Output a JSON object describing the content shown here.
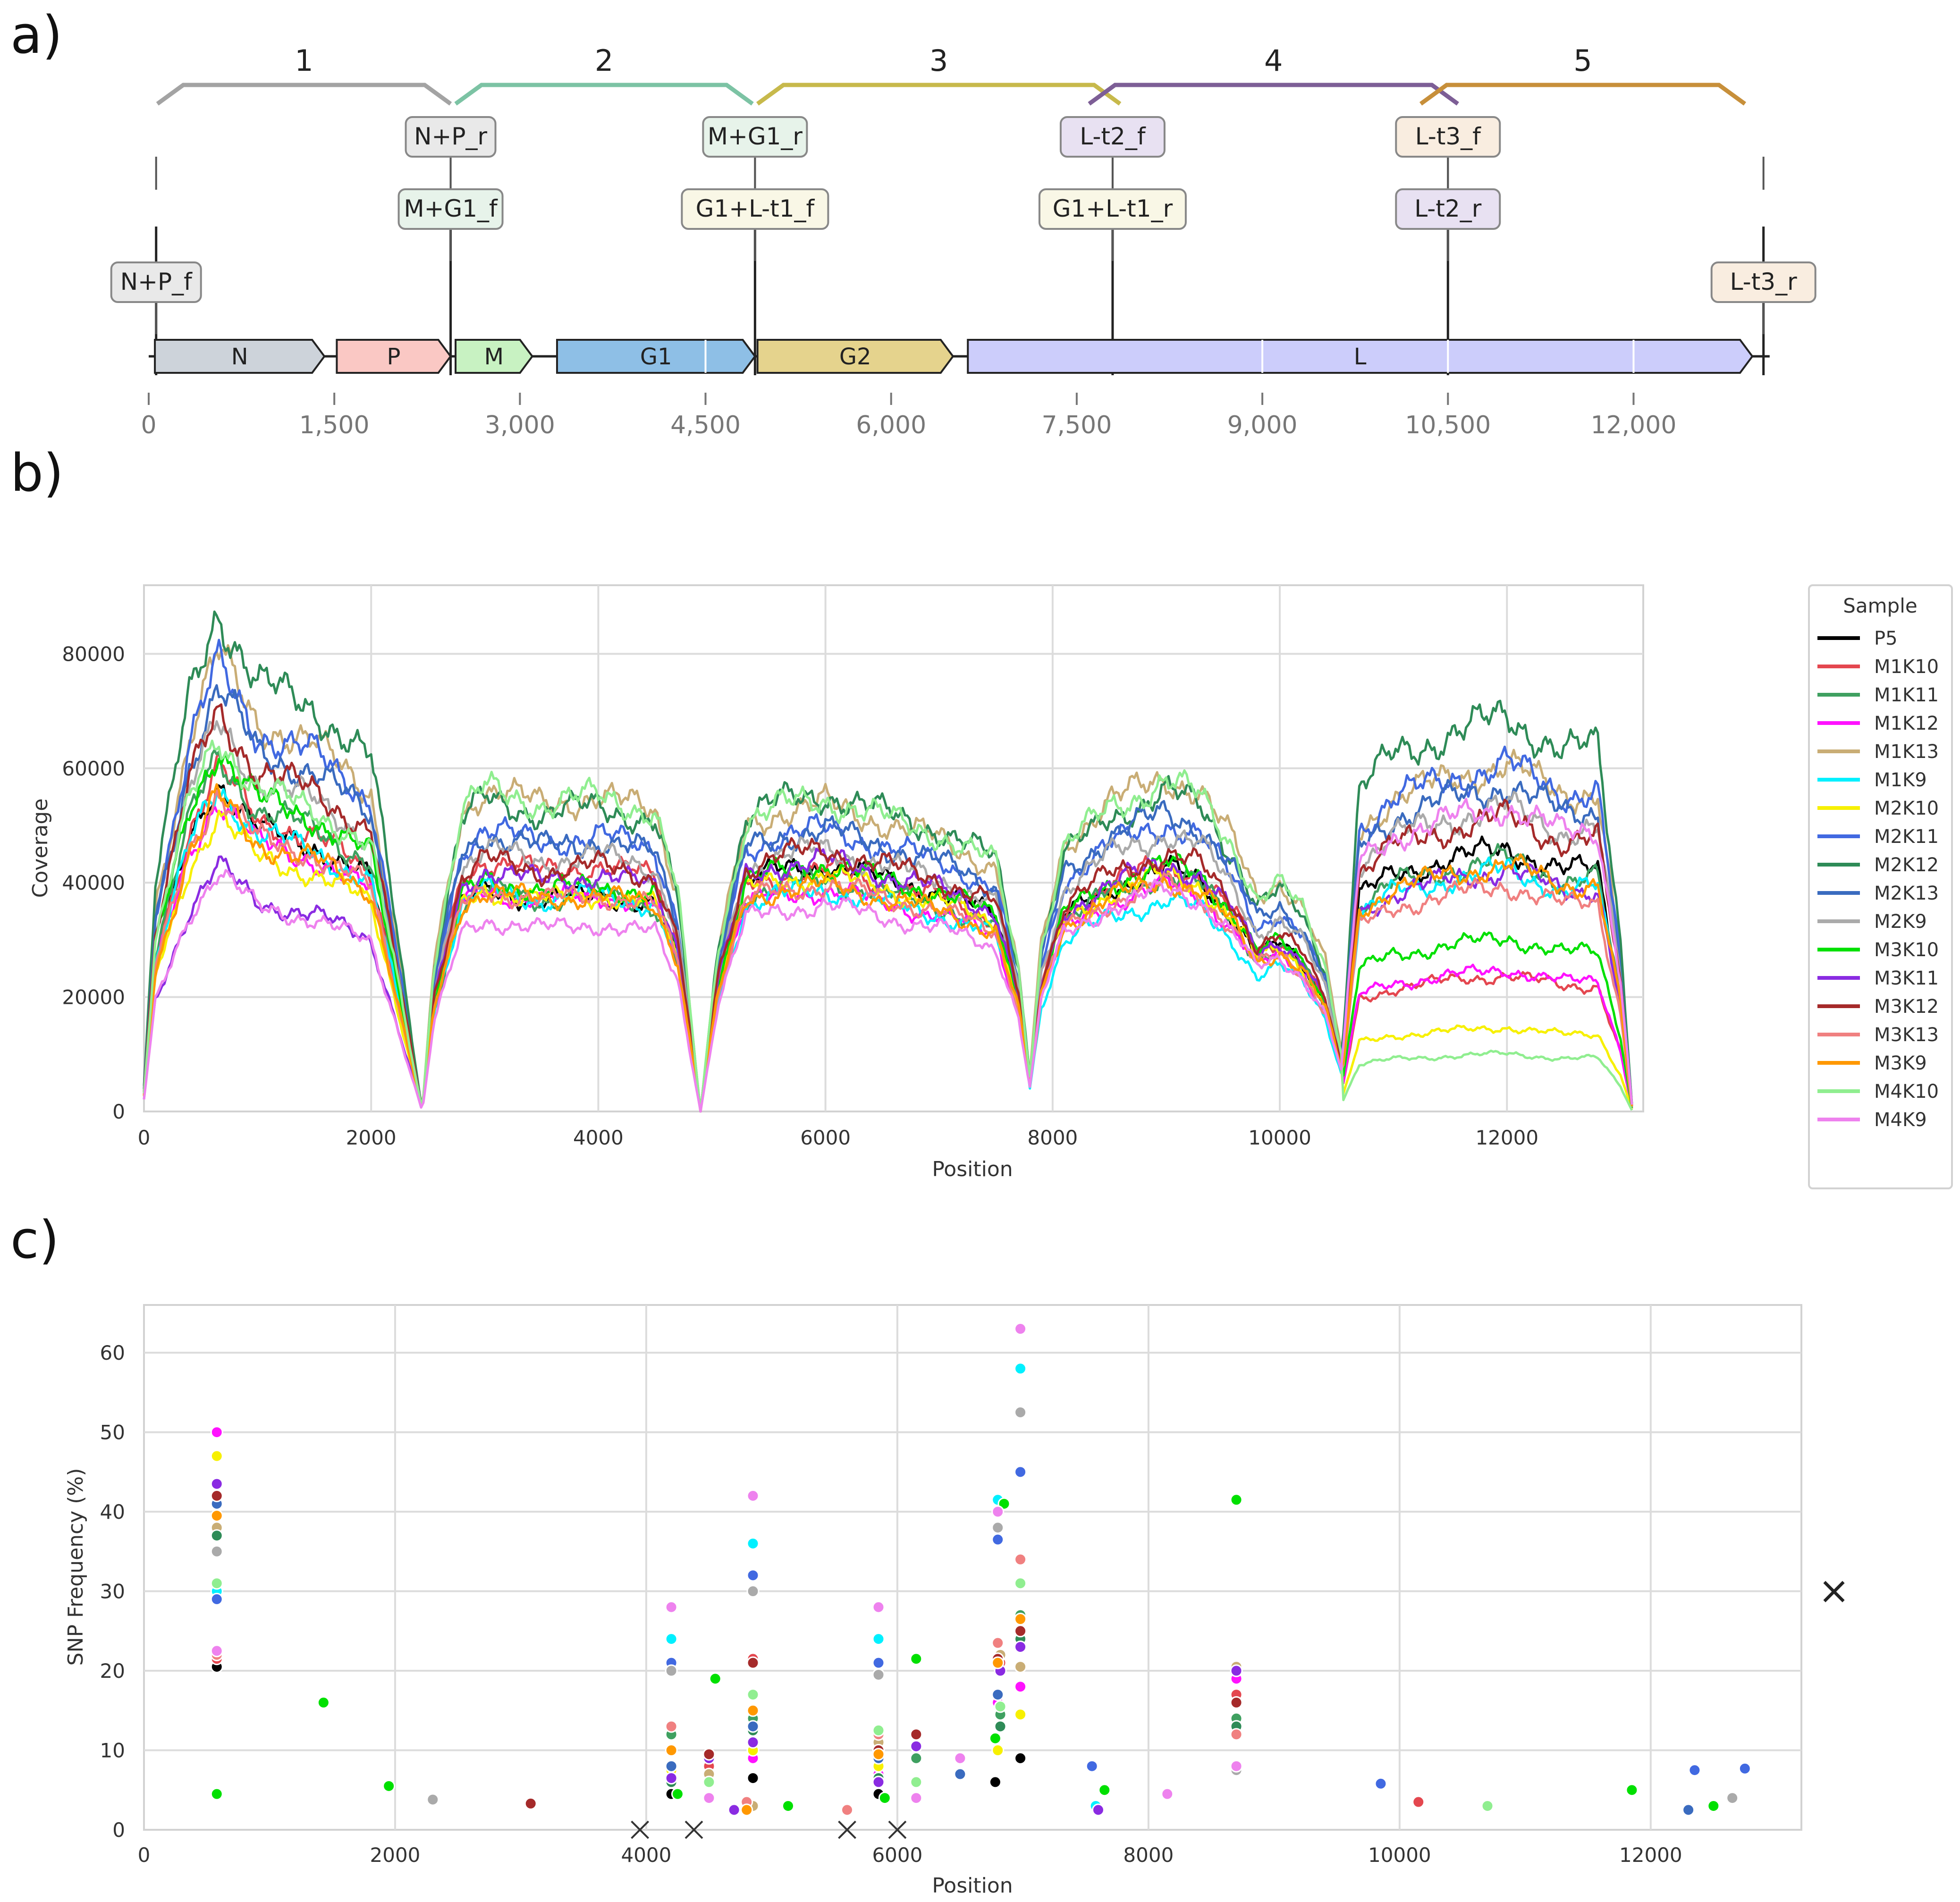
{
  "panel_labels": {
    "a": "a)",
    "b": "b)",
    "c": "c)"
  },
  "colors": {
    "amplicon_1": "#a3a3a3",
    "amplicon_2": "#7cc3a4",
    "amplicon_3": "#c7b94b",
    "amplicon_4": "#7d5e96",
    "amplicon_5": "#c78f3a"
  },
  "chart_data": [
    {
      "panel": "a",
      "type": "genome-map",
      "axis": {
        "range": [
          0,
          13200
        ],
        "ticks": [
          0,
          1500,
          3000,
          4500,
          6000,
          7500,
          9000,
          10500,
          12000
        ],
        "tick_labels": [
          "0",
          "1,500",
          "3,000",
          "4,500",
          "6,000",
          "7,500",
          "9,000",
          "10,500",
          "12,000"
        ]
      },
      "amplicons": [
        {
          "label": "1",
          "start": 70,
          "end": 2440,
          "color": "#a3a3a3"
        },
        {
          "label": "2",
          "start": 2480,
          "end": 4880,
          "color": "#7cc3a4"
        },
        {
          "label": "3",
          "start": 4920,
          "end": 7850,
          "color": "#c7b94b"
        },
        {
          "label": "4",
          "start": 7600,
          "end": 10580,
          "color": "#7d5e96"
        },
        {
          "label": "5",
          "start": 10280,
          "end": 12900,
          "color": "#c78f3a"
        }
      ],
      "genes": [
        {
          "label": "N",
          "start": 50,
          "end": 1420,
          "color": "#cdd3da"
        },
        {
          "label": "P",
          "start": 1520,
          "end": 2440,
          "color": "#fac8c4"
        },
        {
          "label": "M",
          "start": 2480,
          "end": 3100,
          "color": "#c8f2c2"
        },
        {
          "label": "G1",
          "start": 3300,
          "end": 4900,
          "color": "#8ebfe6"
        },
        {
          "label": "G2",
          "start": 4920,
          "end": 6500,
          "color": "#e5d38d"
        },
        {
          "label": "L",
          "start": 6620,
          "end": 12960,
          "color": "#cccdfb"
        }
      ],
      "primers": [
        {
          "label": "N+P_f",
          "pos": 60,
          "tier": 1,
          "color": "#e9e9e9"
        },
        {
          "label": "N+P_r",
          "pos": 2440,
          "tier": 3,
          "color": "#e9e9e9"
        },
        {
          "label": "M+G1_f",
          "pos": 2440,
          "tier": 2,
          "color": "#e7f3ea"
        },
        {
          "label": "M+G1_r",
          "pos": 4900,
          "tier": 3,
          "color": "#e7f3ea"
        },
        {
          "label": "G1+L-t1_f",
          "pos": 4900,
          "tier": 2,
          "color": "#f9f7e6"
        },
        {
          "label": "L-t2_f",
          "pos": 7790,
          "tier": 3,
          "color": "#e8e1f2"
        },
        {
          "label": "G1+L-t1_r",
          "pos": 7790,
          "tier": 2,
          "color": "#f9f7e6"
        },
        {
          "label": "L-t3_f",
          "pos": 10500,
          "tier": 3,
          "color": "#f9ede0"
        },
        {
          "label": "L-t2_r",
          "pos": 10500,
          "tier": 2,
          "color": "#e8e1f2"
        },
        {
          "label": "L-t3_r",
          "pos": 13050,
          "tier": 1,
          "color": "#f9ede0"
        }
      ]
    },
    {
      "panel": "b",
      "type": "line",
      "title": "",
      "xlabel": "Position",
      "ylabel": "Coverage",
      "xlim": [
        0,
        13200
      ],
      "ylim": [
        0,
        92000
      ],
      "xticks": [
        0,
        2000,
        4000,
        6000,
        8000,
        10000,
        12000
      ],
      "xtick_labels": [
        "0",
        "2000",
        "4000",
        "6000",
        "8000",
        "10000",
        "12000"
      ],
      "yticks": [
        0,
        20000,
        40000,
        60000,
        80000
      ],
      "ytick_labels": [
        "0",
        "20000",
        "40000",
        "60000",
        "80000"
      ],
      "legend_title": "Sample",
      "legend_position": "right",
      "base_shape": {
        "x": [
          0,
          100,
          400,
          650,
          1000,
          1500,
          2000,
          2200,
          2450,
          2550,
          2800,
          3000,
          3500,
          4000,
          4500,
          4700,
          4900,
          5050,
          5300,
          5600,
          6000,
          6500,
          7000,
          7500,
          7700,
          7800,
          7900,
          8100,
          8500,
          9000,
          9300,
          9600,
          9800,
          10000,
          10200,
          10400,
          10550,
          10700,
          11000,
          11500,
          12000,
          12500,
          12800,
          13000,
          13100
        ],
        "y": [
          0.05,
          0.45,
          0.82,
          1.0,
          0.85,
          0.8,
          0.7,
          0.4,
          0.0,
          0.4,
          0.82,
          0.88,
          0.84,
          0.86,
          0.82,
          0.6,
          0.0,
          0.45,
          0.82,
          0.86,
          0.88,
          0.83,
          0.78,
          0.7,
          0.4,
          0.1,
          0.45,
          0.72,
          0.83,
          0.9,
          0.86,
          0.72,
          0.58,
          0.62,
          0.55,
          0.4,
          0.15,
          0.75,
          0.83,
          0.88,
          0.92,
          0.84,
          0.85,
          0.4,
          0.02
        ]
      },
      "series": [
        {
          "name": "P5",
          "color": "#000000",
          "peaks": [
            58000,
            44000,
            49000,
            47000,
            50000
          ]
        },
        {
          "name": "M1K10",
          "color": "#e4474f",
          "peaks": [
            60000,
            50000,
            48000,
            48000,
            26000
          ]
        },
        {
          "name": "M1K11",
          "color": "#3fa060",
          "peaks": [
            62000,
            44000,
            46000,
            46000,
            48000
          ]
        },
        {
          "name": "M1K12",
          "color": "#ff12ff",
          "peaks": [
            55000,
            44000,
            44000,
            44000,
            27000
          ]
        },
        {
          "name": "M1K13",
          "color": "#c9ad75",
          "peaks": [
            80000,
            64000,
            61000,
            65000,
            66000
          ]
        },
        {
          "name": "M1K9",
          "color": "#00f0ff",
          "peaks": [
            57000,
            44000,
            44000,
            41000,
            46000
          ]
        },
        {
          "name": "M2K10",
          "color": "#f7f000",
          "peaks": [
            52000,
            44000,
            47000,
            46000,
            16000
          ]
        },
        {
          "name": "M2K11",
          "color": "#4169e1",
          "peaks": [
            78000,
            56000,
            56000,
            56000,
            66000
          ]
        },
        {
          "name": "M2K12",
          "color": "#2e8b57",
          "peaks": [
            88000,
            62000,
            63000,
            62000,
            75000
          ]
        },
        {
          "name": "M2K13",
          "color": "#3a6bbf",
          "peaks": [
            74000,
            55000,
            56000,
            58000,
            62000
          ]
        },
        {
          "name": "M2K9",
          "color": "#aaaaaa",
          "peaks": [
            68000,
            52000,
            52000,
            54000,
            58000
          ]
        },
        {
          "name": "M3K10",
          "color": "#00e000",
          "peaks": [
            64000,
            46000,
            49000,
            48000,
            33000
          ]
        },
        {
          "name": "M3K11",
          "color": "#8a2be2",
          "peaks": [
            43000,
            48000,
            50000,
            48000,
            46000
          ]
        },
        {
          "name": "M3K12",
          "color": "#a52a2a",
          "peaks": [
            70000,
            50000,
            52000,
            50000,
            56000
          ]
        },
        {
          "name": "M3K13",
          "color": "#f08080",
          "peaks": [
            56000,
            44000,
            45000,
            44000,
            43000
          ]
        },
        {
          "name": "M3K9",
          "color": "#ff9800",
          "peaks": [
            55000,
            44000,
            45000,
            45000,
            47000
          ]
        },
        {
          "name": "M4K10",
          "color": "#90ee90",
          "peaks": [
            66000,
            64000,
            62000,
            64000,
            11000
          ]
        },
        {
          "name": "M4K9",
          "color": "#ee82ee",
          "peaks": [
            42000,
            38000,
            41000,
            43000,
            58000
          ]
        }
      ]
    },
    {
      "panel": "c",
      "type": "scatter",
      "title": "",
      "xlabel": "Position",
      "ylabel": "SNP Frequency (%)",
      "xlim": [
        0,
        13200
      ],
      "ylim": [
        0,
        66
      ],
      "xticks": [
        0,
        2000,
        4000,
        6000,
        8000,
        10000,
        12000
      ],
      "xtick_labels": [
        "0",
        "2000",
        "4000",
        "6000",
        "8000",
        "10000",
        "12000"
      ],
      "yticks": [
        0,
        10,
        20,
        30,
        40,
        50,
        60
      ],
      "ytick_labels": [
        "0",
        "10",
        "20",
        "30",
        "40",
        "50",
        "60"
      ],
      "series": [
        {
          "name": "P5",
          "color": "#000000",
          "x": [
            580,
            4200,
            4850,
            5850,
            6780,
            6980
          ],
          "y": [
            20.5,
            4.5,
            6.5,
            4.5,
            6,
            9
          ]
        },
        {
          "name": "M1K10",
          "color": "#e4474f",
          "x": [
            580,
            4500,
            4850,
            6150,
            6820,
            8700,
            10150
          ],
          "y": [
            21.5,
            8,
            21.5,
            12,
            21,
            17,
            3.5
          ]
        },
        {
          "name": "M1K11",
          "color": "#3fa060",
          "x": [
            580,
            4200,
            4850,
            6150,
            6820,
            6980,
            8700
          ],
          "y": [
            37.5,
            12,
            14,
            9,
            14.5,
            27,
            14
          ]
        },
        {
          "name": "M1K12",
          "color": "#ff12ff",
          "x": [
            580,
            4200,
            4850,
            5850,
            6800,
            6980,
            8700
          ],
          "y": [
            50,
            7,
            9,
            7,
            16,
            18,
            19
          ]
        },
        {
          "name": "M1K13",
          "color": "#c9ad75",
          "x": [
            580,
            4500,
            4850,
            5850,
            6820,
            6980,
            8700
          ],
          "y": [
            38,
            7,
            3,
            11,
            22,
            20.5,
            20.5
          ]
        },
        {
          "name": "M1K9",
          "color": "#00f0ff",
          "x": [
            580,
            4200,
            4850,
            5850,
            6800,
            6980,
            7580
          ],
          "y": [
            30,
            24,
            36,
            24,
            41.5,
            58,
            3
          ]
        },
        {
          "name": "M2K10",
          "color": "#f7f000",
          "x": [
            580,
            4200,
            4850,
            5850,
            6800,
            6980
          ],
          "y": [
            47,
            7.5,
            10,
            8,
            10,
            14.5
          ]
        },
        {
          "name": "M2K11",
          "color": "#4169e1",
          "x": [
            580,
            4200,
            4850,
            5850,
            6800,
            6980,
            7550,
            9850,
            12350,
            12750
          ],
          "y": [
            29,
            21,
            32,
            21,
            36.5,
            45,
            8,
            5.8,
            7.5,
            7.7
          ]
        },
        {
          "name": "M2K12",
          "color": "#2e8b57",
          "x": [
            580,
            4200,
            4850,
            5850,
            6820,
            6980,
            8700
          ],
          "y": [
            37,
            6,
            12.5,
            6.5,
            13,
            24,
            13
          ]
        },
        {
          "name": "M2K13",
          "color": "#3a6bbf",
          "x": [
            580,
            4200,
            4850,
            5850,
            6800,
            6500,
            12300
          ],
          "y": [
            41,
            8,
            13,
            9,
            17,
            7,
            2.5
          ]
        },
        {
          "name": "M2K9",
          "color": "#aaaaaa",
          "x": [
            580,
            4200,
            4850,
            5850,
            6800,
            6980,
            8700,
            2300,
            12650
          ],
          "y": [
            35,
            20,
            30,
            19.5,
            38,
            52.5,
            7.5,
            3.8,
            4
          ]
        },
        {
          "name": "M3K10",
          "color": "#00e000",
          "x": [
            580,
            4550,
            4850,
            5900,
            6150,
            6780,
            6850,
            8700,
            1430,
            1950,
            4250,
            5130,
            7650,
            11850,
            12500
          ],
          "y": [
            4.5,
            19,
            17,
            4,
            21.5,
            11.5,
            41,
            41.5,
            16,
            5.5,
            4.5,
            3,
            5,
            5,
            3
          ]
        },
        {
          "name": "M3K11",
          "color": "#8a2be2",
          "x": [
            580,
            4200,
            4500,
            4700,
            4850,
            5850,
            6150,
            6820,
            6980,
            8700,
            7600
          ],
          "y": [
            43.5,
            6.5,
            9,
            2.5,
            11,
            6,
            10.5,
            20,
            23,
            20,
            2.5
          ]
        },
        {
          "name": "M3K12",
          "color": "#a52a2a",
          "x": [
            580,
            4500,
            4850,
            5850,
            6150,
            6800,
            6980,
            8700,
            3080
          ],
          "y": [
            42,
            9.5,
            21,
            10,
            12,
            21.5,
            25,
            16,
            3.3
          ]
        },
        {
          "name": "M3K13",
          "color": "#f08080",
          "x": [
            580,
            4200,
            4800,
            5850,
            6800,
            6980,
            8700,
            5600
          ],
          "y": [
            22,
            13,
            3.5,
            12,
            23.5,
            34,
            12,
            2.5
          ]
        },
        {
          "name": "M3K9",
          "color": "#ff9800",
          "x": [
            580,
            4200,
            4800,
            4850,
            5850,
            6800,
            6980
          ],
          "y": [
            39.5,
            10,
            2.5,
            15,
            9.5,
            21,
            26.5
          ]
        },
        {
          "name": "M4K10",
          "color": "#90ee90",
          "x": [
            580,
            4500,
            4850,
            5850,
            6150,
            6820,
            6980,
            10700
          ],
          "y": [
            31,
            6,
            17,
            12.5,
            6,
            15.5,
            31,
            3
          ]
        },
        {
          "name": "M4K9",
          "color": "#ee82ee",
          "x": [
            580,
            4200,
            4500,
            4850,
            5850,
            6150,
            6500,
            6800,
            6980,
            8150,
            8700
          ],
          "y": [
            22.5,
            28,
            4,
            42,
            28,
            4,
            9,
            40,
            63,
            4.5,
            8
          ]
        }
      ],
      "excluded_markers": {
        "x": [
          3950,
          4380,
          5600,
          6000
        ],
        "y": [
          0,
          0,
          0,
          0
        ]
      },
      "right_marker": "×",
      "right_marker_y": 30
    }
  ]
}
